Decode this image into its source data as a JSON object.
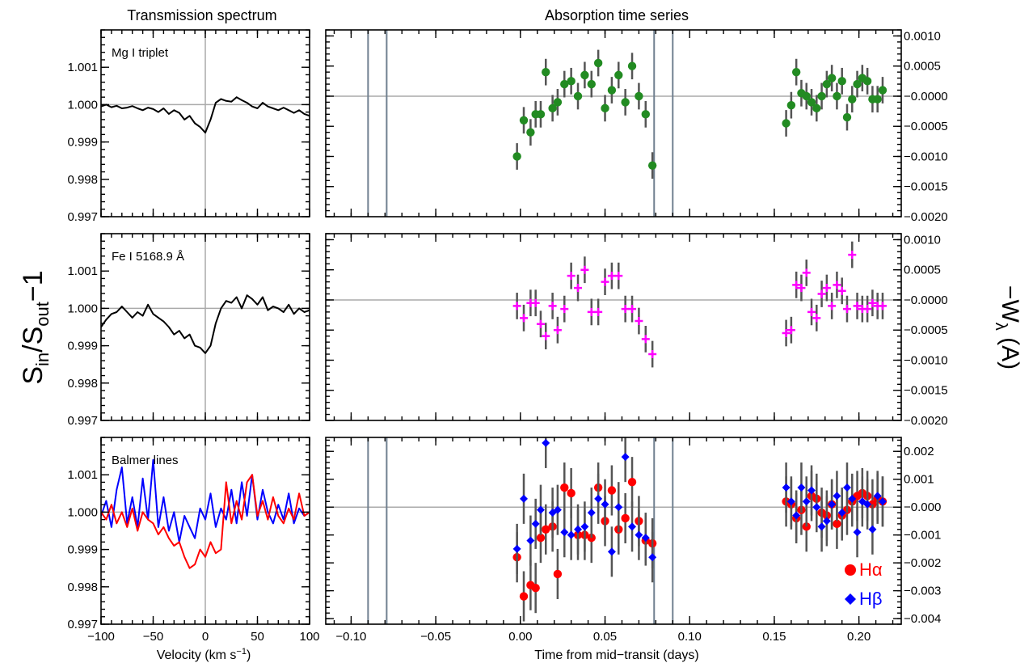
{
  "column_titles": {
    "left": "Transmission spectrum",
    "right": "Absorption time series"
  },
  "axes": {
    "left_x_label": "Velocity (km s",
    "left_x_label_sup": "−1",
    "left_x_label_close": ")",
    "right_x_label": "Time from mid−transit (days)",
    "left_y_label_main": "S",
    "left_y_label_sub1": "in",
    "left_y_label_mid": "/S",
    "left_y_label_sub2": "out",
    "left_y_label_end": "−1",
    "right_y_label_main": "−W",
    "right_y_label_sub": "λ",
    "right_y_label_end": " (A)"
  },
  "legend": {
    "halpha": "Hα",
    "hbeta": "Hβ"
  },
  "colors": {
    "mg": "#228B22",
    "fe": "#FF00FF",
    "halpha": "#FF0000",
    "hbeta": "#0000FF",
    "error": "#555555",
    "refline": "#AAAAAA",
    "transit": "#708090"
  },
  "chart_data": [
    {
      "type": "line",
      "label": "Mg I triplet",
      "xlim": [
        -100,
        100
      ],
      "ylim": [
        0.997,
        1.002
      ],
      "xticks": [
        -100,
        -50,
        0,
        50,
        100
      ],
      "xtick_labels": [
        "−100",
        "−50",
        "0",
        "50",
        "100"
      ],
      "yticks": [
        0.997,
        0.998,
        0.999,
        1.0,
        1.001
      ],
      "ytick_labels": [
        "0.997",
        "0.998",
        "0.999",
        "1.000",
        "1.001"
      ],
      "series": [
        {
          "color": "#000000",
          "x": [
            -100,
            -95,
            -90,
            -85,
            -80,
            -75,
            -70,
            -65,
            -60,
            -55,
            -50,
            -45,
            -40,
            -35,
            -30,
            -25,
            -20,
            -15,
            -10,
            -5,
            0,
            5,
            10,
            15,
            20,
            25,
            30,
            35,
            40,
            45,
            50,
            55,
            60,
            65,
            70,
            75,
            80,
            85,
            90,
            95,
            100
          ],
          "y": [
            0.99995,
            1.0,
            0.99993,
            0.99997,
            0.9999,
            0.99992,
            0.99996,
            0.9999,
            0.99985,
            0.99992,
            0.99988,
            0.9998,
            0.9999,
            0.99975,
            0.99985,
            0.99978,
            0.9996,
            0.9997,
            0.9995,
            0.9994,
            0.99925,
            0.9996,
            1.00005,
            1.00015,
            1.0001,
            1.00008,
            1.0002,
            1.00012,
            1.00005,
            0.99995,
            0.9999,
            1.00005,
            0.99995,
            0.9999,
            0.99985,
            0.99992,
            0.99985,
            0.99978,
            0.99985,
            0.99975,
            0.9997
          ]
        }
      ]
    },
    {
      "type": "line",
      "label": "Fe I 5168.9 Å",
      "xlim": [
        -100,
        100
      ],
      "ylim": [
        0.997,
        1.002
      ],
      "xticks": [
        -100,
        -50,
        0,
        50,
        100
      ],
      "xtick_labels": [
        "−100",
        "−50",
        "0",
        "50",
        "100"
      ],
      "yticks": [
        0.997,
        0.998,
        0.999,
        1.0,
        1.001
      ],
      "ytick_labels": [
        "0.997",
        "0.998",
        "0.999",
        "1.000",
        "1.001"
      ],
      "series": [
        {
          "color": "#000000",
          "x": [
            -100,
            -95,
            -90,
            -85,
            -80,
            -75,
            -70,
            -65,
            -60,
            -55,
            -50,
            -45,
            -40,
            -35,
            -30,
            -25,
            -20,
            -15,
            -10,
            -5,
            0,
            5,
            10,
            15,
            20,
            25,
            30,
            35,
            40,
            45,
            50,
            55,
            60,
            65,
            70,
            75,
            80,
            85,
            90,
            95,
            100
          ],
          "y": [
            0.9995,
            0.9997,
            0.99985,
            0.9999,
            1.00005,
            0.9999,
            0.99975,
            0.9999,
            0.9998,
            1.0001,
            0.99985,
            0.99975,
            0.99965,
            0.9995,
            0.9993,
            0.9994,
            0.9992,
            0.9993,
            0.999,
            0.99895,
            0.9988,
            0.999,
            0.9996,
            1.0,
            1.0002,
            1.00015,
            1.0003,
            1.0,
            1.00035,
            1.00025,
            1.0001,
            1.0003,
            0.99995,
            1.00005,
            1.0,
            0.9999,
            1.0001,
            0.99985,
            1.0,
            0.9999,
            0.99995
          ]
        }
      ]
    },
    {
      "type": "line",
      "label": "Balmer lines",
      "xlim": [
        -100,
        100
      ],
      "ylim": [
        0.997,
        1.002
      ],
      "xticks": [
        -100,
        -50,
        0,
        50,
        100
      ],
      "xtick_labels": [
        "−100",
        "−50",
        "0",
        "50",
        "100"
      ],
      "yticks": [
        0.997,
        0.998,
        0.999,
        1.0,
        1.001
      ],
      "ytick_labels": [
        "0.997",
        "0.998",
        "0.999",
        "1.000",
        "1.001"
      ],
      "series": [
        {
          "color": "#0000FF",
          "x": [
            -100,
            -95,
            -90,
            -85,
            -80,
            -75,
            -70,
            -65,
            -60,
            -55,
            -50,
            -45,
            -40,
            -35,
            -30,
            -25,
            -20,
            -15,
            -10,
            -5,
            0,
            5,
            10,
            15,
            20,
            25,
            30,
            35,
            40,
            45,
            50,
            55,
            60,
            65,
            70,
            75,
            80,
            85,
            90,
            95,
            100
          ],
          "y": [
            0.9999,
            1.0003,
            0.9996,
            1.0006,
            1.0012,
            0.9997,
            1.0004,
            0.9996,
            1.0009,
            0.9998,
            1.0014,
            0.9996,
            1.0004,
            0.9995,
            1.0,
            0.9992,
            0.9999,
            0.9996,
            0.9993,
            1.0001,
            0.9998,
            1.0005,
            0.9996,
            1.0001,
            0.9998,
            1.0006,
            0.9997,
            1.0008,
            0.9999,
            1.001,
            0.9998,
            1.0006,
            1.0,
            0.9997,
            1.0002,
            0.9998,
            1.0005,
            0.9997,
            1.0001,
            0.9999,
            1.0
          ]
        },
        {
          "color": "#FF0000",
          "x": [
            -100,
            -95,
            -90,
            -85,
            -80,
            -75,
            -70,
            -65,
            -60,
            -55,
            -50,
            -45,
            -40,
            -35,
            -30,
            -25,
            -20,
            -15,
            -10,
            -5,
            0,
            5,
            10,
            15,
            20,
            25,
            30,
            35,
            40,
            45,
            50,
            55,
            60,
            65,
            70,
            75,
            80,
            85,
            90,
            95,
            100
          ],
          "y": [
            1.0,
            0.9998,
            1.0002,
            0.9997,
            1.0,
            0.9996,
            1.0001,
            0.9995,
            1.0,
            0.9998,
            0.9997,
            0.9994,
            0.9996,
            0.9993,
            0.9991,
            0.9992,
            0.9988,
            0.9985,
            0.9986,
            0.999,
            0.9988,
            0.9992,
            0.9989,
            0.999,
            1.0008,
            0.9997,
            1.0003,
            0.9998,
            1.0008,
            1.001,
            0.9999,
            1.0003,
            0.9998,
            1.0004,
            0.9999,
            0.9997,
            1.0001,
            0.9998,
            1.0005,
            0.9999,
            1.0
          ]
        }
      ]
    },
    {
      "type": "scatter",
      "xlim": [
        -0.115,
        0.225
      ],
      "ylim": [
        -0.002,
        0.0011
      ],
      "yticks": [
        -0.002,
        -0.0015,
        -0.001,
        -0.0005,
        0.0,
        0.0005,
        0.001
      ],
      "ytick_labels": [
        "−0.0020",
        "−0.0015",
        "−0.0010",
        "−0.0005",
        "−0.0000",
        "0.0005",
        "0.0010"
      ],
      "transit_lines": [
        -0.09,
        -0.079,
        0.079,
        0.09
      ],
      "series": [
        {
          "color": "#228B22",
          "x": [
            -0.002,
            0.002,
            0.006,
            0.009,
            0.012,
            0.015,
            0.019,
            0.022,
            0.026,
            0.03,
            0.034,
            0.038,
            0.042,
            0.046,
            0.05,
            0.054,
            0.058,
            0.062,
            0.066,
            0.07,
            0.074,
            0.078,
            0.157,
            0.16,
            0.163,
            0.166,
            0.169,
            0.172,
            0.175,
            0.178,
            0.181,
            0.184,
            0.187,
            0.19,
            0.193,
            0.196,
            0.199,
            0.202,
            0.205,
            0.208,
            0.211,
            0.214
          ],
          "y": [
            -0.001,
            -0.0004,
            -0.0006,
            -0.0003,
            -0.0003,
            0.0004,
            -0.0002,
            -0.0001,
            0.0002,
            0.00025,
            0.0,
            0.00035,
            0.0002,
            0.00055,
            -0.0002,
            0.0001,
            0.00035,
            -0.0001,
            0.0005,
            0.0,
            -0.0003,
            -0.00115,
            -0.00045,
            -0.00015,
            0.0004,
            5e-05,
            0.0,
            -0.0001,
            -0.0002,
            0.0,
            0.0002,
            0.0003,
            0.0,
            0.00025,
            -0.00035,
            -5e-05,
            0.0002,
            0.0003,
            0.00025,
            -5e-05,
            -5e-05,
            0.0001
          ],
          "err": 0.00022
        }
      ]
    },
    {
      "type": "scatter",
      "xlim": [
        -0.115,
        0.225
      ],
      "ylim": [
        -0.002,
        0.0011
      ],
      "yticks": [
        -0.002,
        -0.0015,
        -0.001,
        -0.0005,
        0.0,
        0.0005,
        0.001
      ],
      "ytick_labels": [
        "−0.0020",
        "−0.0015",
        "−0.0010",
        "−0.0005",
        "−0.0000",
        "0.0005",
        "0.0010"
      ],
      "transit_lines": [],
      "series": [
        {
          "color": "#FF00FF",
          "x": [
            -0.002,
            0.002,
            0.006,
            0.009,
            0.012,
            0.015,
            0.019,
            0.022,
            0.026,
            0.03,
            0.034,
            0.038,
            0.042,
            0.046,
            0.05,
            0.054,
            0.058,
            0.062,
            0.066,
            0.07,
            0.074,
            0.078,
            0.157,
            0.16,
            0.163,
            0.166,
            0.169,
            0.172,
            0.175,
            0.178,
            0.181,
            0.184,
            0.187,
            0.19,
            0.193,
            0.196,
            0.199,
            0.202,
            0.205,
            0.208,
            0.211,
            0.214
          ],
          "y": [
            -0.0001,
            -0.0003,
            -5e-05,
            -5e-05,
            -0.0004,
            -0.0006,
            -0.0001,
            -0.0005,
            -0.00015,
            0.0004,
            0.0002,
            0.0005,
            -0.0002,
            -0.0002,
            0.0003,
            0.0004,
            0.0004,
            -0.00015,
            -0.00015,
            -0.00035,
            -0.00065,
            -0.0009,
            -0.00055,
            -0.0005,
            0.00025,
            0.0002,
            0.00045,
            -0.0002,
            -0.0003,
            0.0001,
            0.0002,
            -0.0001,
            0.00025,
            0.00015,
            -0.00015,
            0.00075,
            -0.0001,
            -0.00015,
            -0.00015,
            -5e-05,
            -0.0001,
            -0.0001
          ],
          "err": 0.00022
        }
      ]
    },
    {
      "type": "scatter",
      "xlim": [
        -0.115,
        0.225
      ],
      "ylim": [
        -0.0042,
        0.0025
      ],
      "yticks": [
        -0.004,
        -0.003,
        -0.002,
        -0.001,
        0.0,
        0.001,
        0.002
      ],
      "ytick_labels": [
        "−0.004",
        "−0.003",
        "−0.002",
        "−0.001",
        "−0.000",
        "0.001",
        "0.002"
      ],
      "transit_lines": [
        -0.09,
        -0.079,
        0.079,
        0.09
      ],
      "series": [
        {
          "name": "Hα",
          "color": "#FF0000",
          "marker": "circle",
          "x": [
            -0.002,
            0.002,
            0.006,
            0.009,
            0.012,
            0.015,
            0.019,
            0.022,
            0.026,
            0.03,
            0.034,
            0.038,
            0.042,
            0.046,
            0.05,
            0.054,
            0.058,
            0.062,
            0.066,
            0.07,
            0.074,
            0.078,
            0.157,
            0.16,
            0.163,
            0.166,
            0.169,
            0.172,
            0.175,
            0.178,
            0.181,
            0.184,
            0.187,
            0.19,
            0.193,
            0.196,
            0.199,
            0.202,
            0.205,
            0.208,
            0.211,
            0.214
          ],
          "y": [
            -0.0018,
            -0.0032,
            -0.0028,
            -0.0029,
            -0.0011,
            -0.0008,
            -0.0007,
            -0.0024,
            0.0007,
            0.0005,
            -0.001,
            -0.001,
            -0.0011,
            0.0007,
            -0.0005,
            0.0006,
            -0.0008,
            -0.0004,
            0.0009,
            -0.0005,
            -0.0012,
            -0.0013,
            0.0002,
            0.0001,
            -0.0004,
            -0.0001,
            -0.0007,
            0.0004,
            0.0003,
            -0.0002,
            -0.0003,
            0.0001,
            -0.0006,
            -0.0003,
            -0.0001,
            0.0002,
            0.0004,
            0.0005,
            0.0004,
            0.0001,
            0.0003,
            0.0002
          ],
          "err": 0.0009
        },
        {
          "name": "Hβ",
          "color": "#0000FF",
          "marker": "diamond",
          "x": [
            -0.002,
            0.002,
            0.006,
            0.009,
            0.012,
            0.015,
            0.019,
            0.022,
            0.026,
            0.03,
            0.034,
            0.038,
            0.042,
            0.046,
            0.05,
            0.054,
            0.058,
            0.062,
            0.066,
            0.07,
            0.074,
            0.078,
            0.157,
            0.16,
            0.163,
            0.166,
            0.169,
            0.172,
            0.175,
            0.178,
            0.181,
            0.184,
            0.187,
            0.19,
            0.193,
            0.196,
            0.199,
            0.202,
            0.205,
            0.208,
            0.211,
            0.214
          ],
          "y": [
            -0.0015,
            0.0003,
            -0.0012,
            -0.0006,
            -0.0001,
            0.0023,
            -0.0002,
            -0.0001,
            -0.0009,
            -0.001,
            -0.0008,
            -0.0007,
            -0.0002,
            0.0003,
            0.0001,
            -0.0016,
            0.0,
            0.0018,
            -0.0007,
            -0.001,
            -0.0011,
            -0.0018,
            0.0007,
            0.0002,
            -0.0003,
            0.0007,
            0.0002,
            0.0006,
            0.0,
            -0.0007,
            -0.0005,
            0.0001,
            0.0004,
            -0.0002,
            0.0007,
            0.0003,
            -0.0009,
            0.0002,
            0.0001,
            -0.0008,
            0.0004,
            0.0002
          ],
          "err": 0.0009
        }
      ]
    }
  ],
  "right_x_axis": {
    "ticks": [
      -0.1,
      -0.05,
      0.0,
      0.05,
      0.1,
      0.15,
      0.2
    ],
    "tick_labels": [
      "−0.10",
      "−0.05",
      "0.00",
      "0.05",
      "0.10",
      "0.15",
      "0.20"
    ]
  }
}
